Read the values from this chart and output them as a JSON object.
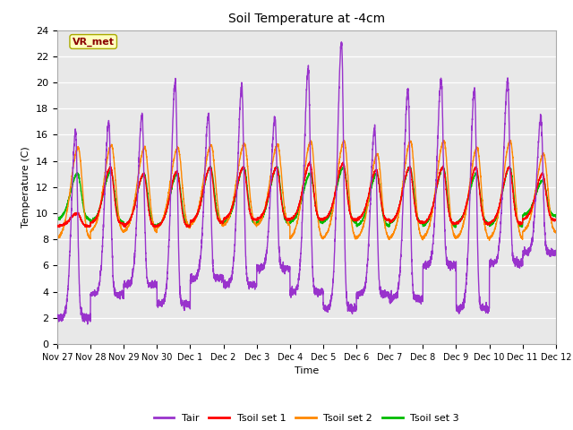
{
  "title": "Soil Temperature at -4cm",
  "xlabel": "Time",
  "ylabel": "Temperature (C)",
  "ylim": [
    0,
    24
  ],
  "yticks": [
    0,
    2,
    4,
    6,
    8,
    10,
    12,
    14,
    16,
    18,
    20,
    22,
    24
  ],
  "xtick_labels": [
    "Nov 27",
    "Nov 28",
    "Nov 29",
    "Nov 30",
    "Dec 1",
    "Dec 2",
    "Dec 3",
    "Dec 4",
    "Dec 5",
    "Dec 6",
    "Dec 7",
    "Dec 8",
    "Dec 9",
    "Dec 10",
    "Dec 11",
    "Dec 12"
  ],
  "annotation_text": "VR_met",
  "annotation_color": "#8B0000",
  "annotation_bg": "#FFFFC0",
  "bg_color": "#E8E8E8",
  "colors": {
    "Tair": "#9933CC",
    "Tsoil1": "#FF0000",
    "Tsoil2": "#FF8800",
    "Tsoil3": "#00BB00"
  },
  "legend_labels": [
    "Tair",
    "Tsoil set 1",
    "Tsoil set 2",
    "Tsoil set 3"
  ]
}
